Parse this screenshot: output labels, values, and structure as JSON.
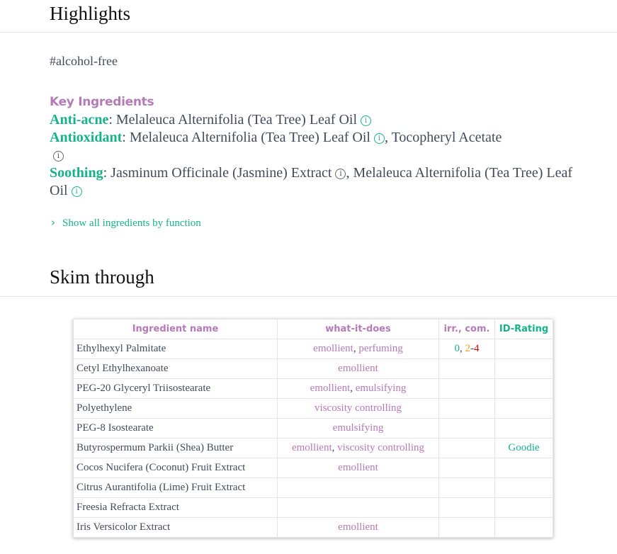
{
  "highlights": {
    "title": "Highlights",
    "tag": "#alcohol-free"
  },
  "key_ingredients": {
    "title": "Key Ingredients",
    "anti_acne": {
      "label": "Anti-acne",
      "items": [
        "Melaleuca Alternifolia (Tea Tree) Leaf Oil"
      ]
    },
    "antioxidant": {
      "label": "Antioxidant",
      "items": [
        "Melaleuca Alternifolia (Tea Tree) Leaf Oil",
        "Tocopheryl Acetate"
      ]
    },
    "soothing": {
      "label": "Soothing",
      "items": [
        "Jasminum Officinale (Jasmine) Extract",
        "Melaleuca Alternifolia (Tea Tree) Leaf Oil"
      ]
    },
    "show_all": "Show all ingredients by function"
  },
  "skim": {
    "title": "Skim through",
    "headers": [
      "Ingredient name",
      "what-it-does",
      "irr., com.",
      "ID-Rating"
    ],
    "rows": [
      {
        "name": "Ethylhexyl Palmitate",
        "does": [
          "emollient",
          "perfuming"
        ],
        "irr": "0",
        "com": "2-4",
        "com_a": "2",
        "com_b": "4",
        "rating": ""
      },
      {
        "name": "Cetyl Ethylhexanoate",
        "does": [
          "emollient"
        ],
        "rating": ""
      },
      {
        "name": "PEG-20 Glyceryl Triisostearate",
        "does": [
          "emollient",
          "emulsifying"
        ],
        "rating": ""
      },
      {
        "name": "Polyethylene",
        "does": [
          "viscosity controlling"
        ],
        "rating": ""
      },
      {
        "name": "PEG-8 Isostearate",
        "does": [
          "emulsifying"
        ],
        "rating": ""
      },
      {
        "name": "Butyrospermum Parkii (Shea) Butter",
        "does": [
          "emollient",
          "viscosity controlling"
        ],
        "rating": "Goodie"
      },
      {
        "name": "Cocos Nucifera (Coconut) Fruit Extract",
        "does": [
          "emollient"
        ],
        "rating": ""
      },
      {
        "name": "Citrus Aurantifolia (Lime) Fruit Extract",
        "does": [],
        "rating": ""
      },
      {
        "name": "Freesia Refracta Extract",
        "does": [],
        "rating": ""
      },
      {
        "name": "Iris Versicolor Extract",
        "does": [
          "emollient"
        ],
        "rating": ""
      }
    ]
  },
  "colors": {
    "green": "#14b38a",
    "purple": "#b57bb8",
    "orange": "#f5a300",
    "red": "#e00000"
  }
}
